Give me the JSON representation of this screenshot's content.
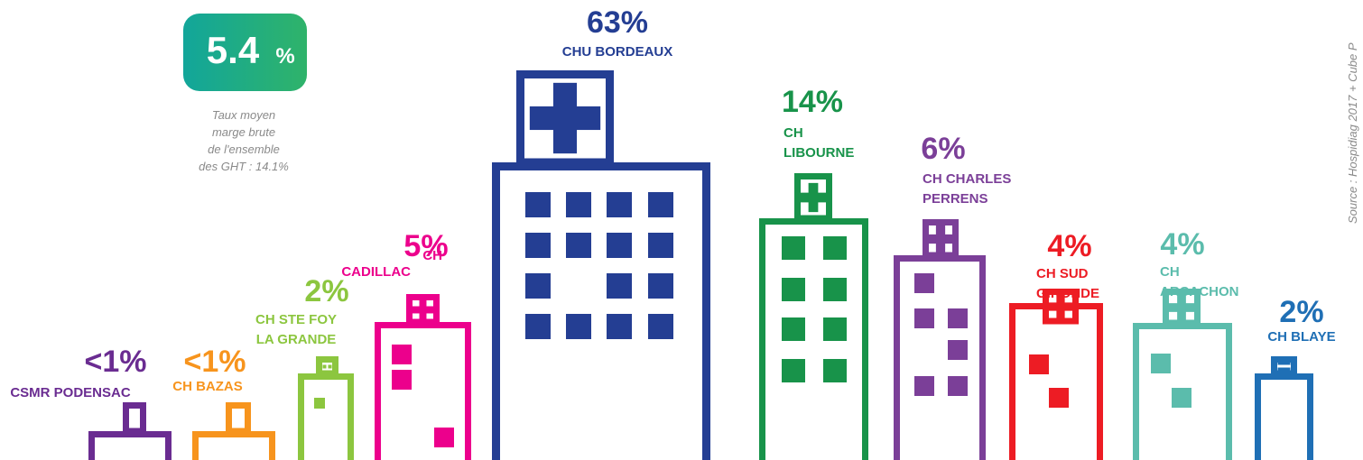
{
  "badge": {
    "value": "5.4",
    "unit": "%"
  },
  "caption": [
    "Taux moyen",
    "marge brute",
    "de l'ensemble",
    "des GHT : 14.1%"
  ],
  "source": "Source : Hospidiag 2017 + Cube P",
  "hospitals": [
    {
      "share": "<1%",
      "name": [
        "CSMR PODENSAC"
      ]
    },
    {
      "share": "<1%",
      "name": [
        "CH BAZAS"
      ]
    },
    {
      "share": "2%",
      "name": [
        "CH STE FOY",
        "LA GRANDE"
      ]
    },
    {
      "share": "5%",
      "name": [
        "CH",
        "CADILLAC"
      ]
    },
    {
      "share": "63%",
      "name": [
        "CHU BORDEAUX"
      ]
    },
    {
      "share": "14%",
      "name": [
        "CH",
        "LIBOURNE"
      ]
    },
    {
      "share": "6%",
      "name": [
        "CH CHARLES",
        "PERRENS"
      ]
    },
    {
      "share": "4%",
      "name": [
        "CH SUD",
        "GIRONDE"
      ]
    },
    {
      "share": "4%",
      "name": [
        "CH",
        "ARCACHON"
      ]
    },
    {
      "share": "2%",
      "name": [
        "CH BLAYE"
      ]
    }
  ]
}
